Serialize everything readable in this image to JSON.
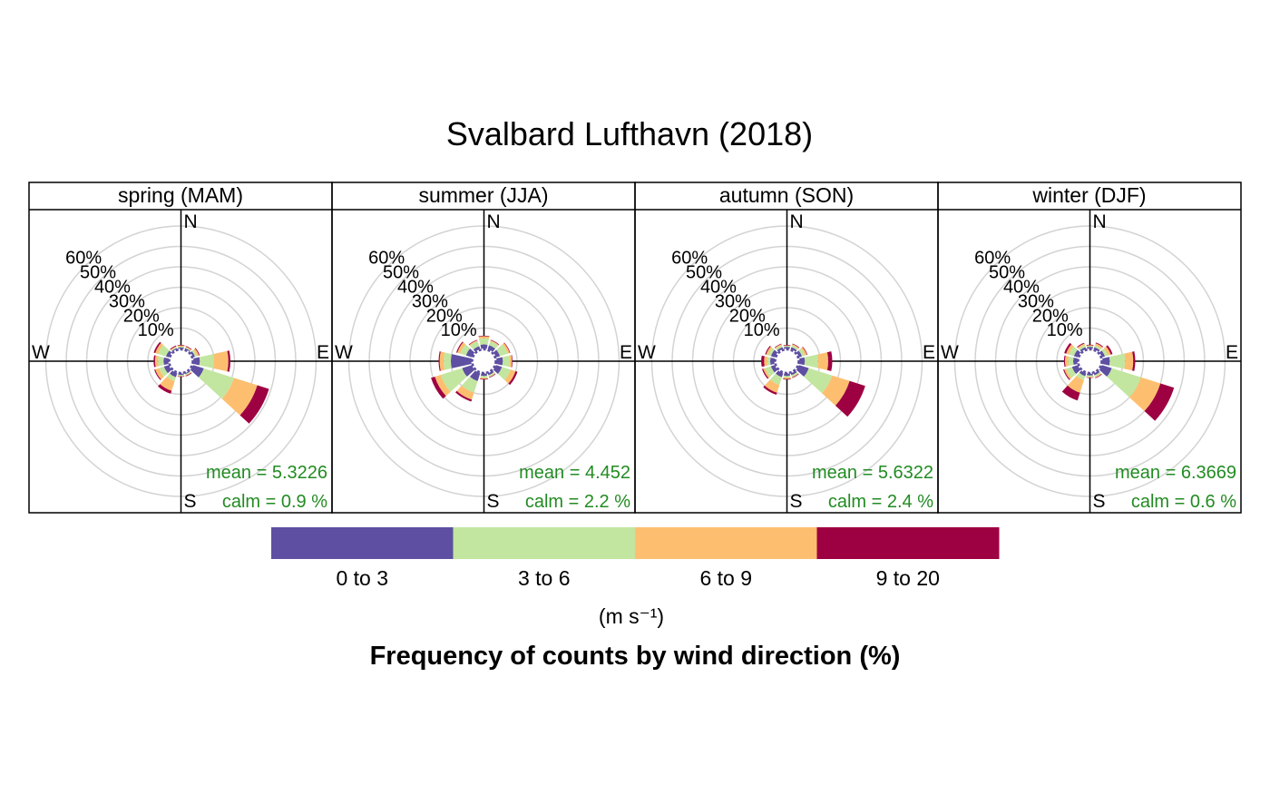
{
  "chart_data": {
    "type": "windrose",
    "title": "Svalbard Lufthavn (2018)",
    "xlabel": "Frequency of counts by wind direction (%)",
    "units": "(m s⁻¹)",
    "direction_step_deg": 30,
    "radial_ticks": [
      "10%",
      "20%",
      "30%",
      "40%",
      "50%",
      "60%"
    ],
    "radial_max": 60,
    "cardinals": [
      "N",
      "E",
      "S",
      "W"
    ],
    "speed_bins": [
      {
        "label": "0 to 3",
        "color": "#5E4FA2"
      },
      {
        "label": "3 to 6",
        "color": "#C2E6A0"
      },
      {
        "label": "6 to 9",
        "color": "#FDBF6F"
      },
      {
        "label": "9 to 20",
        "color": "#9E0142"
      }
    ],
    "panels": [
      {
        "strip": "spring (MAM)",
        "mean_label": "mean  =  5.3226",
        "calm_label": "calm =  0.9 %",
        "directions": [
          360,
          30,
          60,
          90,
          120,
          150,
          180,
          210,
          240,
          270,
          300,
          330
        ],
        "cumulative": [
          [
            0.5,
            1.0,
            1.5,
            1.8
          ],
          [
            0.5,
            0.9,
            1.3,
            1.6
          ],
          [
            1.0,
            2.0,
            3.0,
            3.4
          ],
          [
            3.0,
            10.0,
            17.0,
            18.0
          ],
          [
            5.5,
            21.0,
            33.0,
            39.0
          ],
          [
            0.5,
            1.0,
            1.3,
            1.6
          ],
          [
            0.5,
            1.0,
            1.3,
            1.5
          ],
          [
            2.0,
            4.0,
            9.0,
            10.5
          ],
          [
            2.5,
            5.0,
            7.0,
            7.5
          ],
          [
            2.3,
            5.0,
            6.5,
            7.2
          ],
          [
            1.5,
            5.5,
            7.0,
            7.8
          ],
          [
            0.5,
            1.0,
            1.4,
            1.8
          ]
        ]
      },
      {
        "strip": "summer (JJA)",
        "mean_label": "mean  =  4.452",
        "calm_label": "calm =  2.2 %",
        "directions": [
          360,
          30,
          60,
          90,
          120,
          150,
          180,
          210,
          240,
          270,
          300,
          330
        ],
        "cumulative": [
          [
            2.0,
            5.0,
            6.0,
            6.3
          ],
          [
            2.0,
            4.0,
            4.5,
            4.8
          ],
          [
            2.0,
            6.0,
            7.0,
            7.3
          ],
          [
            3.0,
            6.5,
            7.5,
            7.8
          ],
          [
            3.0,
            7.5,
            10.0,
            11.0
          ],
          [
            1.0,
            1.8,
            2.0,
            2.3
          ],
          [
            1.0,
            2.0,
            2.5,
            2.8
          ],
          [
            4.0,
            10.0,
            13.5,
            14.5
          ],
          [
            5.0,
            16.0,
            19.0,
            21.0
          ],
          [
            10.0,
            13.5,
            15.5,
            16.0
          ],
          [
            3.0,
            6.0,
            7.5,
            8.0
          ],
          [
            1.5,
            4.0,
            4.5,
            4.8
          ]
        ]
      },
      {
        "strip": "autumn (SON)",
        "mean_label": "mean  =  5.6322",
        "calm_label": "calm =  2.4 %",
        "directions": [
          360,
          30,
          60,
          90,
          120,
          150,
          180,
          210,
          240,
          270,
          300,
          330
        ],
        "cumulative": [
          [
            0.8,
            1.3,
            1.5,
            1.8
          ],
          [
            1.0,
            2.0,
            2.5,
            2.8
          ],
          [
            1.5,
            3.0,
            4.0,
            4.3
          ],
          [
            2.5,
            9.0,
            14.0,
            16.0
          ],
          [
            5.0,
            17.0,
            26.0,
            34.0
          ],
          [
            1.0,
            1.8,
            2.1,
            2.4
          ],
          [
            1.0,
            1.8,
            2.5,
            2.8
          ],
          [
            2.0,
            6.0,
            10.0,
            11.0
          ],
          [
            2.0,
            5.0,
            6.0,
            6.6
          ],
          [
            2.0,
            3.5,
            5.0,
            6.4
          ],
          [
            2.0,
            3.5,
            4.5,
            5.0
          ],
          [
            1.0,
            2.0,
            2.5,
            2.8
          ]
        ]
      },
      {
        "strip": "winter (DJF)",
        "mean_label": "mean  =  6.3669",
        "calm_label": "calm =  0.6 %",
        "directions": [
          360,
          30,
          60,
          90,
          120,
          150,
          180,
          210,
          240,
          270,
          300,
          330
        ],
        "cumulative": [
          [
            0.8,
            1.3,
            1.6,
            1.9
          ],
          [
            1.0,
            2.0,
            3.0,
            3.4
          ],
          [
            1.5,
            3.0,
            4.5,
            5.4
          ],
          [
            3.5,
            11.0,
            15.0,
            16.0
          ],
          [
            5.0,
            20.0,
            30.0,
            37.0
          ],
          [
            1.0,
            1.8,
            2.2,
            2.5
          ],
          [
            0.8,
            1.5,
            1.8,
            2.0
          ],
          [
            1.5,
            3.5,
            10.0,
            14.0
          ],
          [
            3.0,
            6.0,
            7.0,
            7.5
          ],
          [
            2.0,
            4.5,
            6.0,
            6.5
          ],
          [
            2.0,
            4.5,
            6.0,
            7.0
          ],
          [
            1.0,
            2.0,
            2.8,
            3.2
          ]
        ]
      }
    ]
  }
}
